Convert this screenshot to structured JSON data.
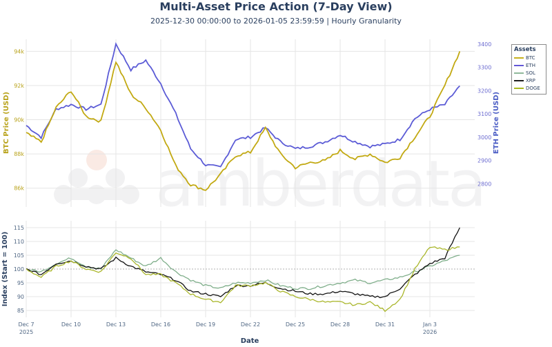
{
  "title": "Multi-Asset Price Action (7-Day View)",
  "subtitle": "2025-12-30 00:00:00 to 2026-01-05 23:59:59 | Hourly Granularity",
  "watermark": "amberdata",
  "legend": {
    "title": "Assets",
    "items": [
      {
        "label": "BTC",
        "color": "#c6b01c"
      },
      {
        "label": "ETH",
        "color": "#6257d6"
      },
      {
        "label": "SOL",
        "color": "#8fb89a"
      },
      {
        "label": "XRP",
        "color": "#1b1b1b"
      },
      {
        "label": "DOGE",
        "color": "#a8b81c"
      }
    ]
  },
  "colors": {
    "btc": "#c2a912",
    "eth": "#5b5bd6",
    "sol": "#7fae8a",
    "xrp": "#111111",
    "doge": "#a9b62a",
    "text": "#2a3f5f",
    "grid": "#e5e5e5"
  },
  "chart_data": [
    {
      "type": "line",
      "title": "Multi-Asset Price Action (7-Day View)",
      "subtitle": "2025-12-30 00:00:00 to 2026-01-05 23:59:59 | Hourly Granularity",
      "xlabel": "Date",
      "ylabel": "BTC Price (USD)",
      "y2label": "ETH Price (USD)",
      "x_ticks": [
        "Dec 7\n2025",
        "Dec 10",
        "Dec 13",
        "Dec 16",
        "Dec 19",
        "Dec 22",
        "Dec 25",
        "Dec 28",
        "Dec 31",
        "Jan 3\n2026"
      ],
      "yticks": [
        "86k",
        "88k",
        "90k",
        "92k",
        "94k"
      ],
      "y2ticks": [
        "2800",
        "2900",
        "3000",
        "3100",
        "3200",
        "3300",
        "3400"
      ],
      "ylim": [
        84900,
        94700
      ],
      "y2lim": [
        2700,
        3420
      ],
      "grid": true,
      "legend_position": "right",
      "x": [
        "Dec 7",
        "Dec 8",
        "Dec 9",
        "Dec 10",
        "Dec 11",
        "Dec 12",
        "Dec 13",
        "Dec 14",
        "Dec 15",
        "Dec 16",
        "Dec 17",
        "Dec 18",
        "Dec 19",
        "Dec 20",
        "Dec 21",
        "Dec 22",
        "Dec 23",
        "Dec 24",
        "Dec 25",
        "Dec 26",
        "Dec 27",
        "Dec 28",
        "Dec 29",
        "Dec 30",
        "Dec 31",
        "Jan 1",
        "Jan 2",
        "Jan 3",
        "Jan 4",
        "Jan 5"
      ],
      "series": [
        {
          "name": "BTC",
          "axis": "y",
          "values": [
            89200,
            88700,
            90700,
            91700,
            90200,
            89900,
            93400,
            91500,
            90700,
            89400,
            87300,
            86200,
            85900,
            86800,
            87900,
            88100,
            89500,
            88000,
            87200,
            87500,
            87600,
            88200,
            87700,
            88000,
            87500,
            87800,
            89000,
            90200,
            92000,
            94000
          ]
        },
        {
          "name": "ETH",
          "axis": "y2",
          "values": [
            3050,
            3000,
            3120,
            3140,
            3120,
            3140,
            3400,
            3290,
            3330,
            3230,
            3100,
            2950,
            2880,
            2870,
            2990,
            3000,
            3040,
            2980,
            2950,
            2960,
            2980,
            3010,
            2980,
            2960,
            2970,
            2990,
            3080,
            3120,
            3140,
            3220
          ]
        }
      ]
    },
    {
      "type": "line",
      "xlabel": "Date",
      "ylabel": "Index (Start = 100)",
      "yticks": [
        85,
        90,
        95,
        100,
        105,
        110,
        115
      ],
      "ylim": [
        82.5,
        117.5
      ],
      "reference_line": 100,
      "x_ticks": [
        "Dec 7\n2025",
        "Dec 10",
        "Dec 13",
        "Dec 16",
        "Dec 19",
        "Dec 22",
        "Dec 25",
        "Dec 28",
        "Dec 31",
        "Jan 3\n2026"
      ],
      "x": [
        "Dec 7",
        "Dec 8",
        "Dec 9",
        "Dec 10",
        "Dec 11",
        "Dec 12",
        "Dec 13",
        "Dec 14",
        "Dec 15",
        "Dec 16",
        "Dec 17",
        "Dec 18",
        "Dec 19",
        "Dec 20",
        "Dec 21",
        "Dec 22",
        "Dec 23",
        "Dec 24",
        "Dec 25",
        "Dec 26",
        "Dec 27",
        "Dec 28",
        "Dec 29",
        "Dec 30",
        "Dec 31",
        "Jan 1",
        "Jan 2",
        "Jan 3",
        "Jan 4",
        "Jan 5"
      ],
      "series": [
        {
          "name": "SOL",
          "values": [
            100,
            99,
            102,
            104,
            101,
            100,
            107,
            104,
            101,
            104,
            99,
            96,
            94,
            93,
            95,
            95,
            96,
            94,
            93,
            93,
            94,
            95,
            96,
            95,
            96,
            97,
            99,
            101,
            103,
            105
          ]
        },
        {
          "name": "XRP",
          "values": [
            100,
            98,
            102,
            103,
            101,
            100,
            104,
            101,
            99,
            98,
            96,
            92,
            91,
            90,
            94,
            94,
            95,
            93,
            92,
            91,
            91,
            92,
            91,
            90,
            90,
            93,
            98,
            102,
            104,
            115
          ]
        },
        {
          "name": "DOGE",
          "values": [
            100,
            97,
            101,
            103,
            100,
            99,
            106,
            104,
            98,
            98,
            95,
            91,
            89,
            88,
            94,
            94,
            95,
            92,
            90,
            89,
            88,
            88,
            87,
            88,
            85,
            89,
            100,
            108,
            107,
            108
          ]
        }
      ]
    }
  ]
}
